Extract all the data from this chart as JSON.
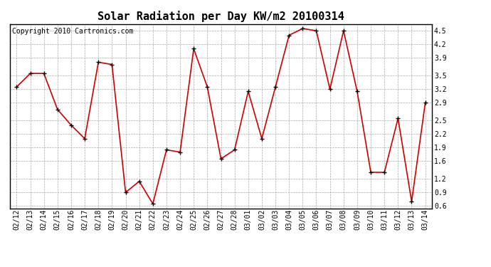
{
  "title": "Solar Radiation per Day KW/m2 20100314",
  "copyright": "Copyright 2010 Cartronics.com",
  "dates": [
    "02/12",
    "02/13",
    "02/14",
    "02/15",
    "02/16",
    "02/17",
    "02/18",
    "02/19",
    "02/20",
    "02/21",
    "02/22",
    "02/23",
    "02/24",
    "02/25",
    "02/26",
    "02/27",
    "02/28",
    "03/01",
    "03/02",
    "03/03",
    "03/04",
    "03/05",
    "03/06",
    "03/07",
    "03/08",
    "03/09",
    "03/10",
    "03/11",
    "03/12",
    "03/13",
    "03/14"
  ],
  "values": [
    3.25,
    3.55,
    3.55,
    2.75,
    2.4,
    2.1,
    3.8,
    3.75,
    0.9,
    1.15,
    0.65,
    1.85,
    1.8,
    4.1,
    3.25,
    1.65,
    1.85,
    3.15,
    2.1,
    3.25,
    4.4,
    4.55,
    4.5,
    3.2,
    4.5,
    3.15,
    1.35,
    1.35,
    2.55,
    0.7,
    2.9
  ],
  "line_color": "#cc0000",
  "marker_color": "#000000",
  "bg_color": "#ffffff",
  "plot_bg_color": "#ffffff",
  "grid_color": "#aaaaaa",
  "ylim": [
    0.55,
    4.65
  ],
  "yticks": [
    0.6,
    0.9,
    1.2,
    1.6,
    1.9,
    2.2,
    2.5,
    2.9,
    3.2,
    3.5,
    3.9,
    4.2,
    4.5
  ],
  "title_fontsize": 11,
  "copyright_fontsize": 7,
  "tick_fontsize": 7
}
